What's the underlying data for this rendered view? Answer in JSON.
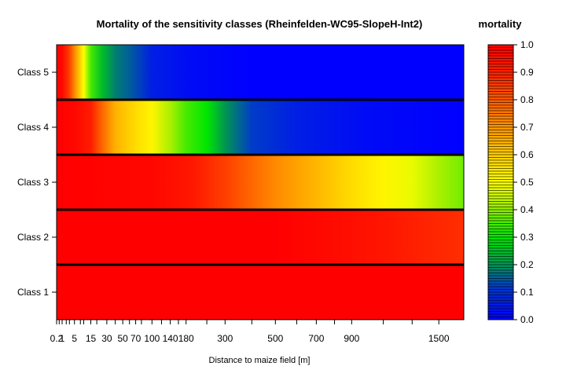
{
  "chart_data": {
    "type": "heatmap",
    "title": "Mortality of the sensitivity classes (Rheinfelden-WC95-SlopeH-Int2)",
    "xlabel": "Distance to maize field [m]",
    "ylabel": "",
    "legend_title": "mortality",
    "x_scale": "sqrt",
    "x_ticks": [
      0.2,
      1,
      5,
      15,
      30,
      50,
      70,
      100,
      140,
      180,
      300,
      500,
      700,
      900,
      1500
    ],
    "x_range": [
      0.2,
      1700
    ],
    "rows": [
      "Class 5",
      "Class 4",
      "Class 3",
      "Class 2",
      "Class 1"
    ],
    "color_range": [
      0.0,
      1.0
    ],
    "color_ticks": [
      "1.0",
      "0.9",
      "0.8",
      "0.7",
      "0.6",
      "0.5",
      "0.4",
      "0.3",
      "0.2",
      "0.1",
      "0.0"
    ],
    "series": [
      {
        "name": "Class 5",
        "points": [
          [
            0.2,
            1.0
          ],
          [
            1,
            0.98
          ],
          [
            3,
            0.85
          ],
          [
            5,
            0.72
          ],
          [
            10,
            0.5
          ],
          [
            15,
            0.35
          ],
          [
            25,
            0.25
          ],
          [
            40,
            0.18
          ],
          [
            60,
            0.15
          ],
          [
            100,
            0.06
          ],
          [
            200,
            0.02
          ],
          [
            400,
            0.0
          ],
          [
            1700,
            0.0
          ]
        ]
      },
      {
        "name": "Class 4",
        "points": [
          [
            0.2,
            1.0
          ],
          [
            5,
            0.98
          ],
          [
            15,
            0.92
          ],
          [
            25,
            0.78
          ],
          [
            40,
            0.65
          ],
          [
            70,
            0.57
          ],
          [
            100,
            0.52
          ],
          [
            140,
            0.42
          ],
          [
            180,
            0.35
          ],
          [
            240,
            0.3
          ],
          [
            300,
            0.2
          ],
          [
            400,
            0.12
          ],
          [
            600,
            0.06
          ],
          [
            1000,
            0.02
          ],
          [
            1700,
            0.0
          ]
        ]
      },
      {
        "name": "Class 3",
        "points": [
          [
            0.2,
            1.0
          ],
          [
            100,
            0.98
          ],
          [
            200,
            0.93
          ],
          [
            300,
            0.85
          ],
          [
            500,
            0.72
          ],
          [
            700,
            0.64
          ],
          [
            900,
            0.57
          ],
          [
            1100,
            0.52
          ],
          [
            1300,
            0.48
          ],
          [
            1500,
            0.42
          ],
          [
            1700,
            0.38
          ]
        ]
      },
      {
        "name": "Class 2",
        "points": [
          [
            0.2,
            1.0
          ],
          [
            500,
            1.0
          ],
          [
            800,
            0.97
          ],
          [
            1100,
            0.94
          ],
          [
            1400,
            0.9
          ],
          [
            1700,
            0.88
          ]
        ]
      },
      {
        "name": "Class 1",
        "points": [
          [
            0.2,
            1.0
          ],
          [
            1700,
            1.0
          ]
        ]
      }
    ]
  }
}
